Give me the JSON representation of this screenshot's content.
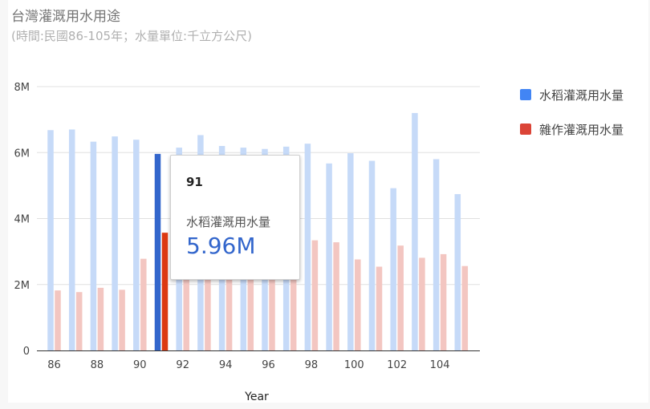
{
  "title": "台灣灌溉用水用途",
  "subtitle": "(時間:民國86-105年；水量單位:千立方公尺)",
  "chart_data": {
    "type": "bar",
    "title": "台灣灌溉用水用途",
    "subtitle": "(時間:民國86-105年；水量單位:千立方公尺)",
    "xlabel": "Year",
    "ylabel": "",
    "ylim": [
      0,
      8000000
    ],
    "yticks": [
      "0",
      "2M",
      "4M",
      "6M",
      "8M"
    ],
    "xticks": [
      "86",
      "88",
      "90",
      "92",
      "94",
      "96",
      "98",
      "100",
      "102",
      "104"
    ],
    "categories": [
      "86",
      "87",
      "88",
      "89",
      "90",
      "91",
      "92",
      "93",
      "94",
      "95",
      "96",
      "97",
      "98",
      "99",
      "100",
      "101",
      "102",
      "103",
      "104",
      "105"
    ],
    "series": [
      {
        "name": "水稻灌溉用水量",
        "color": "#4285f4",
        "values": [
          6680000,
          6700000,
          6330000,
          6490000,
          6390000,
          5960000,
          6150000,
          6530000,
          6200000,
          6150000,
          6110000,
          6180000,
          6270000,
          5670000,
          5980000,
          5750000,
          4920000,
          7200000,
          5800000,
          4740000
        ]
      },
      {
        "name": "雜作灌溉用水量",
        "color": "#db4437",
        "values": [
          1820000,
          1770000,
          1900000,
          1840000,
          2780000,
          3570000,
          2650000,
          2800000,
          2500000,
          2600000,
          2800000,
          2900000,
          3340000,
          3280000,
          2760000,
          2540000,
          3180000,
          2810000,
          2920000,
          2560000
        ]
      }
    ],
    "highlight_category": "91",
    "legend_position": "right",
    "grid": true
  },
  "tooltip": {
    "year": "91",
    "series": "水稻灌溉用水量",
    "value": "5.96M"
  }
}
